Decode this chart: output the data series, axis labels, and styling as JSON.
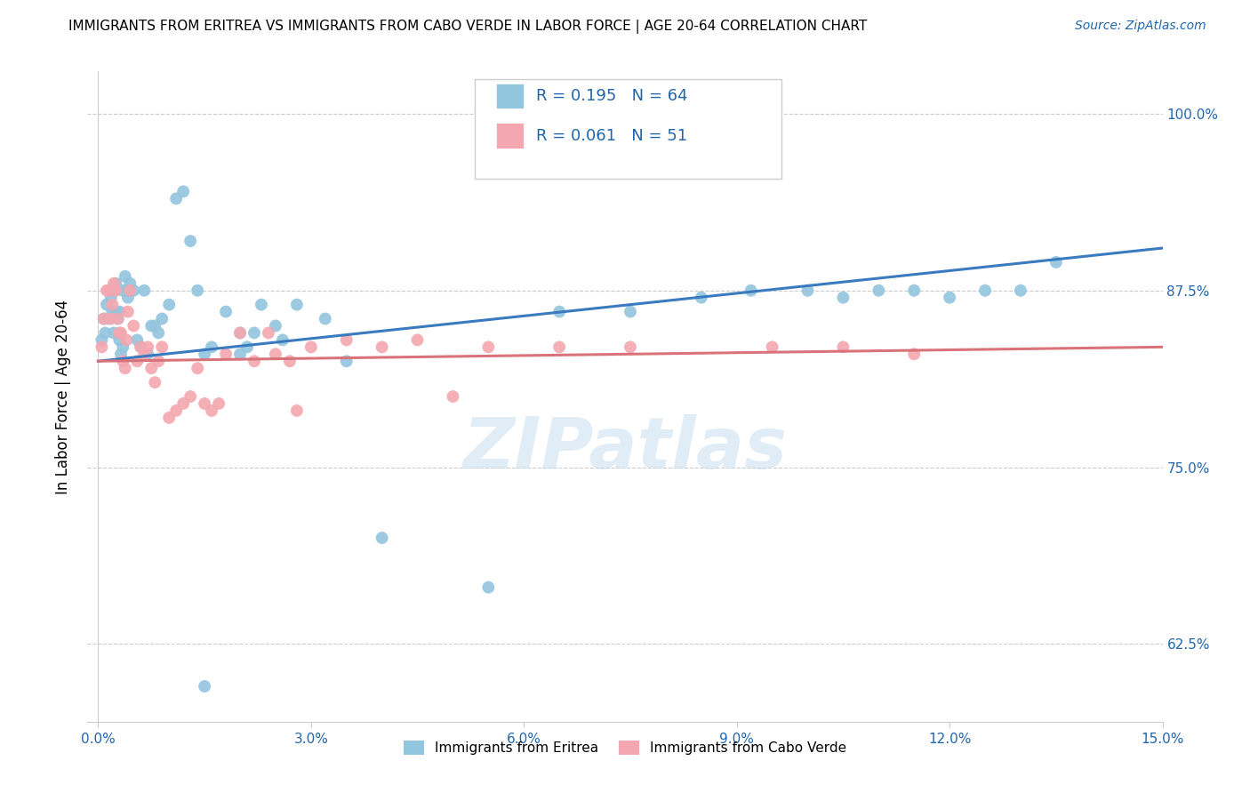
{
  "title": "IMMIGRANTS FROM ERITREA VS IMMIGRANTS FROM CABO VERDE IN LABOR FORCE | AGE 20-64 CORRELATION CHART",
  "source": "Source: ZipAtlas.com",
  "yticks": [
    62.5,
    75.0,
    87.5,
    100.0
  ],
  "xticks": [
    0.0,
    3.0,
    6.0,
    9.0,
    12.0,
    15.0
  ],
  "xlim": [
    -0.15,
    15.0
  ],
  "ylim": [
    57.0,
    103.0
  ],
  "series1_label": "Immigrants from Eritrea",
  "series2_label": "Immigrants from Cabo Verde",
  "series1_R": "0.195",
  "series1_N": "64",
  "series2_R": "0.061",
  "series2_N": "51",
  "series1_color": "#92c5de",
  "series2_color": "#f4a7b0",
  "trend1_color": "#3a7abf",
  "trend2_color": "#d9737a",
  "watermark": "ZIPatlas",
  "ylabel_label": "In Labor Force | Age 20-64",
  "series1_x": [
    0.05,
    0.08,
    0.1,
    0.12,
    0.15,
    0.15,
    0.18,
    0.2,
    0.22,
    0.22,
    0.25,
    0.25,
    0.28,
    0.3,
    0.3,
    0.32,
    0.35,
    0.35,
    0.38,
    0.4,
    0.42,
    0.45,
    0.5,
    0.55,
    0.6,
    0.65,
    0.7,
    0.75,
    0.8,
    0.85,
    0.9,
    1.0,
    1.1,
    1.2,
    1.3,
    1.4,
    1.5,
    1.6,
    1.8,
    2.0,
    2.0,
    2.1,
    2.2,
    2.3,
    2.5,
    2.6,
    2.8,
    3.2,
    3.5,
    4.0,
    5.5,
    6.5,
    7.5,
    8.5,
    9.2,
    10.0,
    10.5,
    11.0,
    11.5,
    12.0,
    12.5,
    13.0,
    13.5,
    1.5
  ],
  "series1_y": [
    84.0,
    85.5,
    84.5,
    86.5,
    87.5,
    85.5,
    87.0,
    86.0,
    87.5,
    84.5,
    88.0,
    86.0,
    85.5,
    84.0,
    86.0,
    83.0,
    83.5,
    87.5,
    88.5,
    87.5,
    87.0,
    88.0,
    87.5,
    84.0,
    83.5,
    87.5,
    83.0,
    85.0,
    85.0,
    84.5,
    85.5,
    86.5,
    94.0,
    94.5,
    91.0,
    87.5,
    83.0,
    83.5,
    86.0,
    84.5,
    83.0,
    83.5,
    84.5,
    86.5,
    85.0,
    84.0,
    86.5,
    85.5,
    82.5,
    70.0,
    66.5,
    86.0,
    86.0,
    87.0,
    87.5,
    87.5,
    87.0,
    87.5,
    87.5,
    87.0,
    87.5,
    87.5,
    89.5,
    59.5
  ],
  "series2_x": [
    0.05,
    0.08,
    0.12,
    0.15,
    0.18,
    0.2,
    0.22,
    0.25,
    0.28,
    0.3,
    0.32,
    0.35,
    0.38,
    0.4,
    0.42,
    0.45,
    0.5,
    0.55,
    0.6,
    0.65,
    0.7,
    0.75,
    0.8,
    0.85,
    0.9,
    1.0,
    1.1,
    1.2,
    1.3,
    1.4,
    1.5,
    1.6,
    1.7,
    1.8,
    2.0,
    2.2,
    2.4,
    2.5,
    2.7,
    2.8,
    3.0,
    3.5,
    4.0,
    4.5,
    5.0,
    5.5,
    6.5,
    7.5,
    9.5,
    10.5,
    11.5
  ],
  "series2_y": [
    83.5,
    85.5,
    87.5,
    87.5,
    85.5,
    86.5,
    88.0,
    87.5,
    85.5,
    84.5,
    84.5,
    82.5,
    82.0,
    84.0,
    86.0,
    87.5,
    85.0,
    82.5,
    83.5,
    83.0,
    83.5,
    82.0,
    81.0,
    82.5,
    83.5,
    78.5,
    79.0,
    79.5,
    80.0,
    82.0,
    79.5,
    79.0,
    79.5,
    83.0,
    84.5,
    82.5,
    84.5,
    83.0,
    82.5,
    79.0,
    83.5,
    84.0,
    83.5,
    84.0,
    80.0,
    83.5,
    83.5,
    83.5,
    83.5,
    83.5,
    83.0
  ],
  "trend1_x0": 0.0,
  "trend1_y0": 82.5,
  "trend1_x1": 15.0,
  "trend1_y1": 90.5,
  "trend2_x0": 0.0,
  "trend2_y0": 82.5,
  "trend2_x1": 15.0,
  "trend2_y1": 83.5
}
